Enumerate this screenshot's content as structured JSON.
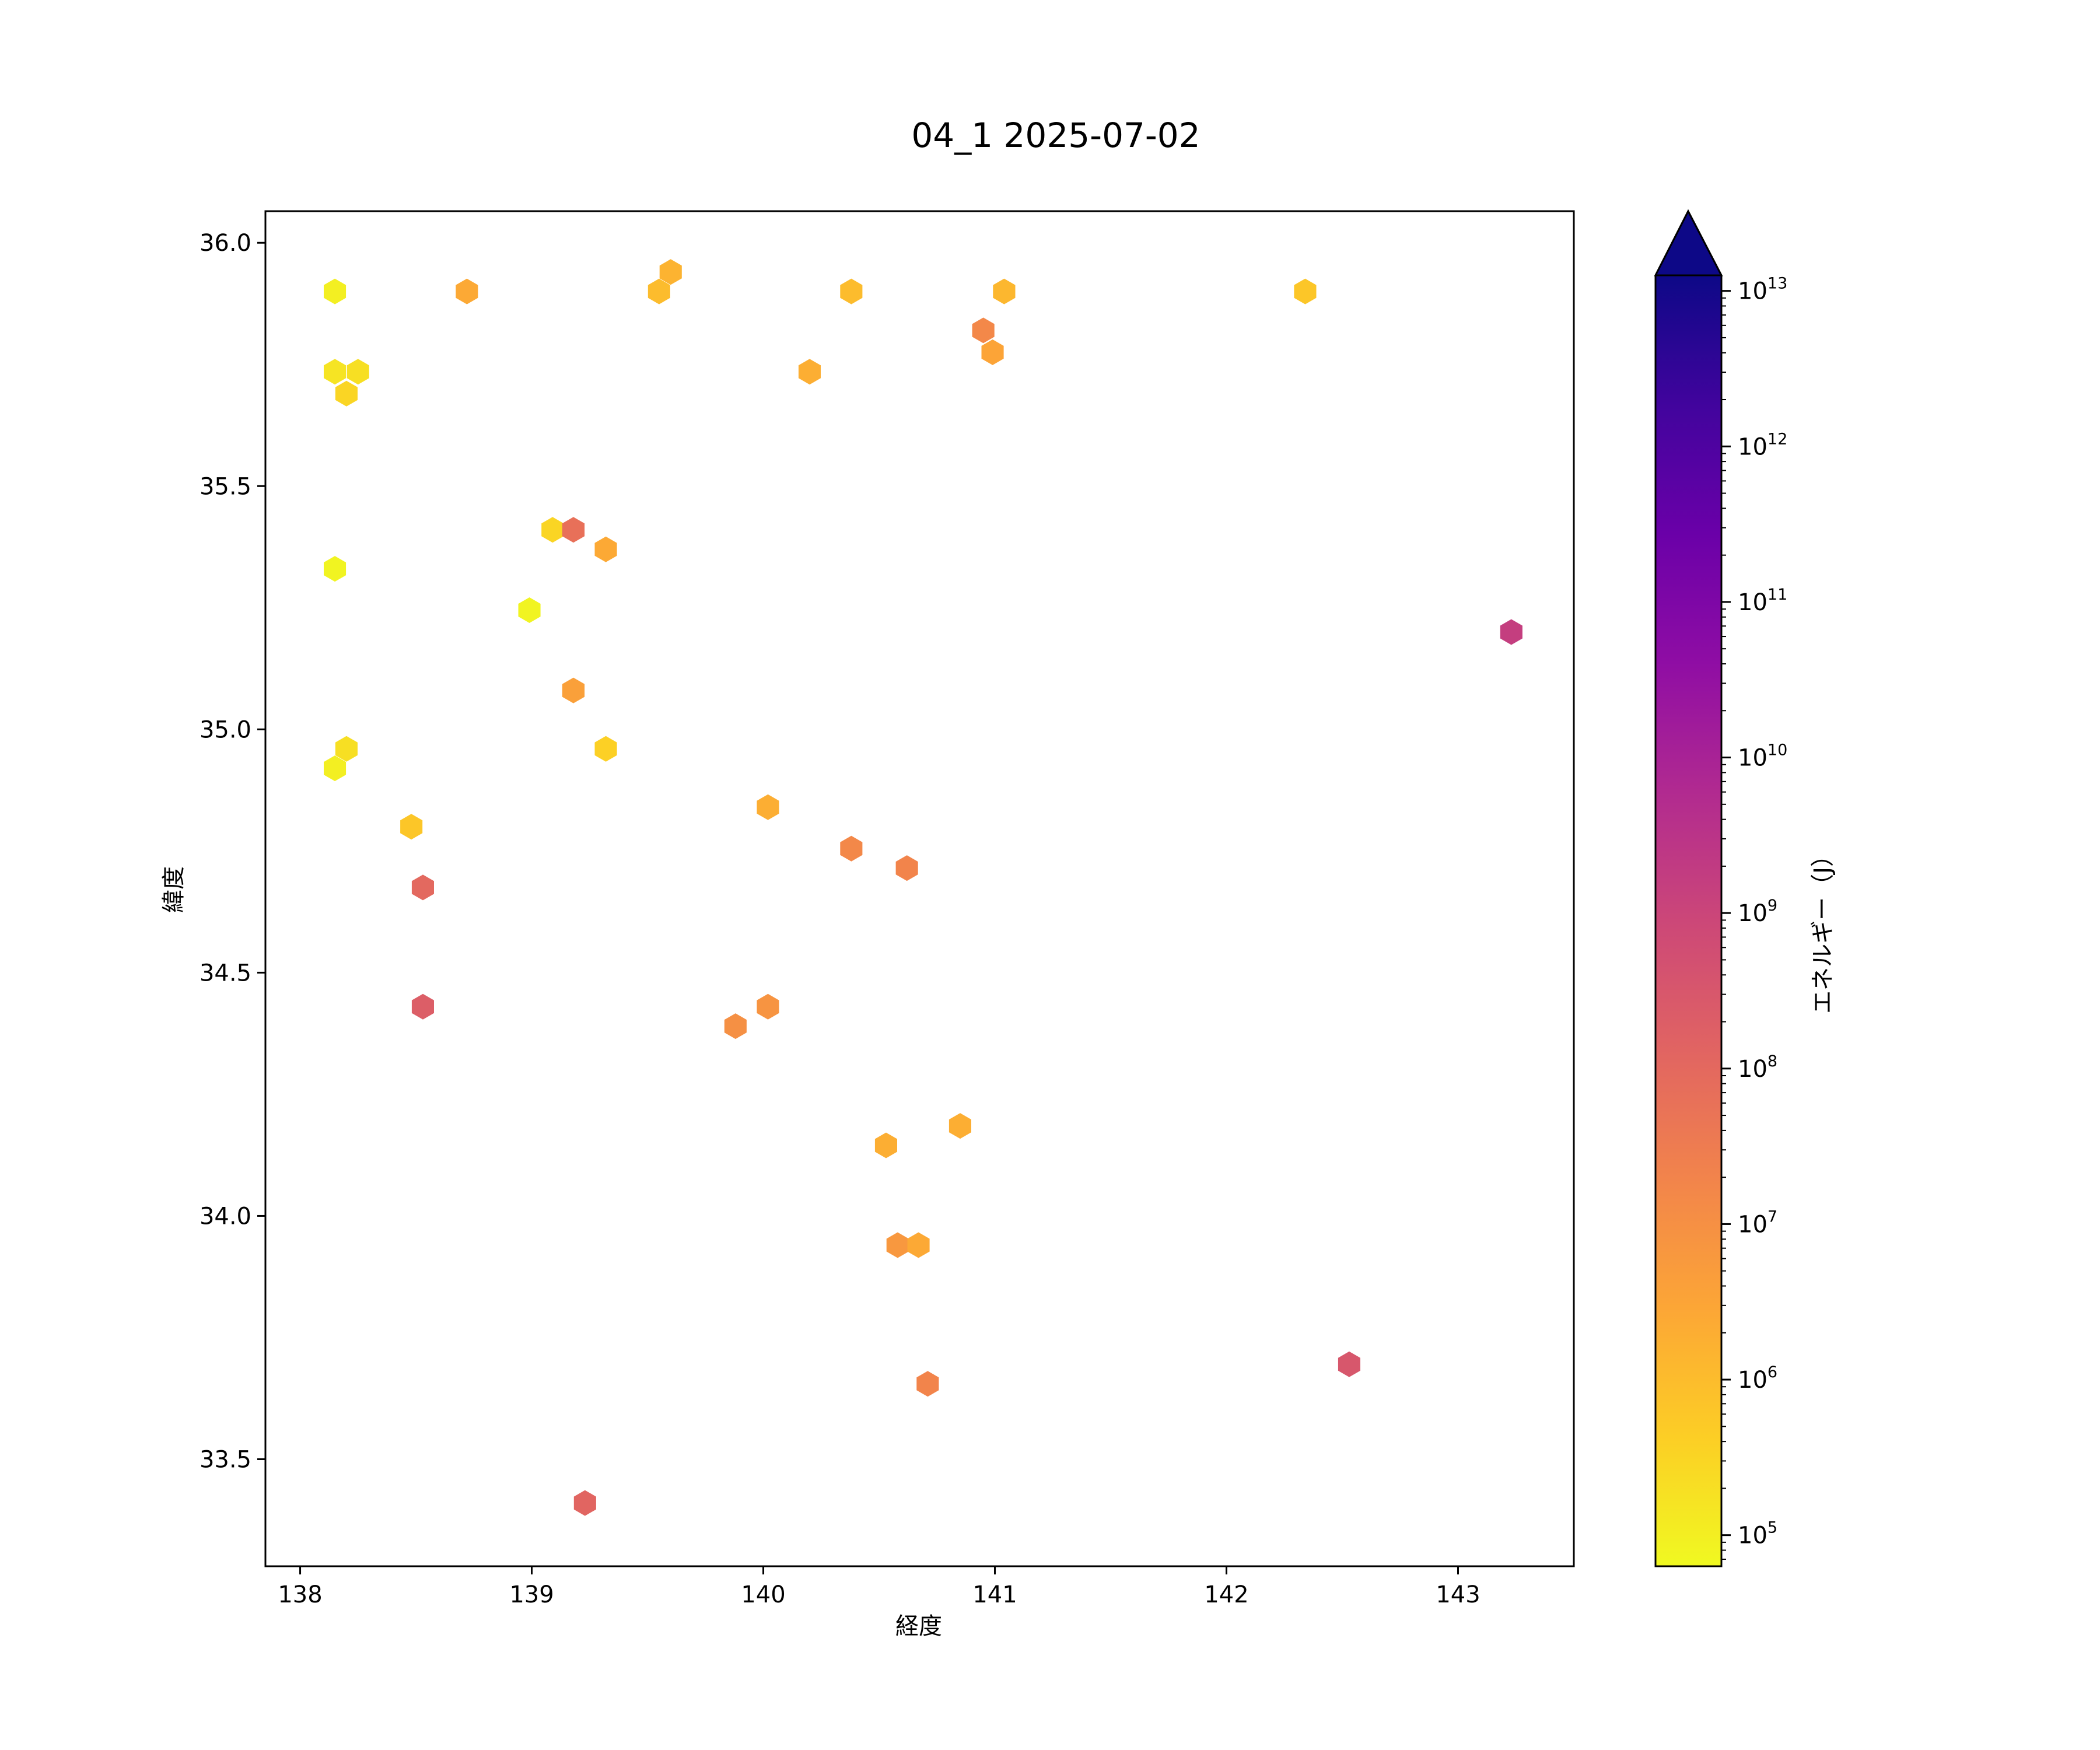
{
  "chart_data": {
    "type": "scatter",
    "marker": "hexagon",
    "title": "04_1 2025-07-02",
    "xlabel": "経度",
    "ylabel": "緯度",
    "xlim": [
      137.85,
      143.5
    ],
    "ylim": [
      33.28,
      36.065
    ],
    "xticks": [
      {
        "value": 138,
        "label": "138"
      },
      {
        "value": 139,
        "label": "139"
      },
      {
        "value": 140,
        "label": "140"
      },
      {
        "value": 141,
        "label": "141"
      },
      {
        "value": 142,
        "label": "142"
      },
      {
        "value": 143,
        "label": "143"
      }
    ],
    "yticks": [
      {
        "value": 33.5,
        "label": "33.5"
      },
      {
        "value": 34.0,
        "label": "34.0"
      },
      {
        "value": 34.5,
        "label": "34.5"
      },
      {
        "value": 35.0,
        "label": "35.0"
      },
      {
        "value": 35.5,
        "label": "35.5"
      },
      {
        "value": 36.0,
        "label": "36.0"
      }
    ],
    "colorbar": {
      "label": "エネルギー（J）",
      "scale": "log",
      "colormap": "plasma_r",
      "extend": "max",
      "min_exponent": 4.8,
      "max_exponent": 13.1,
      "ticks": [
        {
          "value": 5,
          "base": "10",
          "exp": "5"
        },
        {
          "value": 6,
          "base": "10",
          "exp": "6"
        },
        {
          "value": 7,
          "base": "10",
          "exp": "7"
        },
        {
          "value": 8,
          "base": "10",
          "exp": "8"
        },
        {
          "value": 9,
          "base": "10",
          "exp": "9"
        },
        {
          "value": 10,
          "base": "10",
          "exp": "10"
        },
        {
          "value": 11,
          "base": "10",
          "exp": "11"
        },
        {
          "value": 12,
          "base": "10",
          "exp": "12"
        },
        {
          "value": 13,
          "base": "10",
          "exp": "13"
        }
      ]
    },
    "points": [
      {
        "lon": 138.15,
        "lat": 35.9,
        "log_energy": 5.0
      },
      {
        "lon": 138.15,
        "lat": 35.735,
        "log_energy": 5.2
      },
      {
        "lon": 138.25,
        "lat": 35.735,
        "log_energy": 5.3
      },
      {
        "lon": 138.2,
        "lat": 35.69,
        "log_energy": 5.5
      },
      {
        "lon": 138.72,
        "lat": 35.9,
        "log_energy": 6.4
      },
      {
        "lon": 139.55,
        "lat": 35.9,
        "log_energy": 6.0
      },
      {
        "lon": 139.6,
        "lat": 35.94,
        "log_energy": 6.2
      },
      {
        "lon": 140.38,
        "lat": 35.9,
        "log_energy": 6.0
      },
      {
        "lon": 141.04,
        "lat": 35.9,
        "log_energy": 6.1
      },
      {
        "lon": 142.34,
        "lat": 35.9,
        "log_energy": 5.8
      },
      {
        "lon": 140.2,
        "lat": 35.735,
        "log_energy": 6.3
      },
      {
        "lon": 140.95,
        "lat": 35.82,
        "log_energy": 7.2
      },
      {
        "lon": 140.99,
        "lat": 35.775,
        "log_energy": 6.5
      },
      {
        "lon": 138.15,
        "lat": 35.33,
        "log_energy": 4.9
      },
      {
        "lon": 139.09,
        "lat": 35.41,
        "log_energy": 5.5
      },
      {
        "lon": 139.18,
        "lat": 35.41,
        "log_energy": 7.8
      },
      {
        "lon": 139.32,
        "lat": 35.37,
        "log_energy": 6.4
      },
      {
        "lon": 138.99,
        "lat": 35.245,
        "log_energy": 4.9
      },
      {
        "lon": 143.23,
        "lat": 35.2,
        "log_energy": 9.2
      },
      {
        "lon": 139.18,
        "lat": 35.08,
        "log_energy": 6.6
      },
      {
        "lon": 138.2,
        "lat": 34.96,
        "log_energy": 5.3
      },
      {
        "lon": 138.15,
        "lat": 34.92,
        "log_energy": 5.0
      },
      {
        "lon": 139.32,
        "lat": 34.96,
        "log_energy": 5.6
      },
      {
        "lon": 140.02,
        "lat": 34.84,
        "log_energy": 6.3
      },
      {
        "lon": 138.48,
        "lat": 34.8,
        "log_energy": 5.8
      },
      {
        "lon": 140.38,
        "lat": 34.755,
        "log_energy": 7.2
      },
      {
        "lon": 140.62,
        "lat": 34.715,
        "log_energy": 7.3
      },
      {
        "lon": 138.53,
        "lat": 34.675,
        "log_energy": 8.0
      },
      {
        "lon": 138.53,
        "lat": 34.43,
        "log_energy": 8.3
      },
      {
        "lon": 140.02,
        "lat": 34.43,
        "log_energy": 6.9
      },
      {
        "lon": 139.88,
        "lat": 34.39,
        "log_energy": 7.0
      },
      {
        "lon": 140.85,
        "lat": 34.185,
        "log_energy": 6.3
      },
      {
        "lon": 140.53,
        "lat": 34.145,
        "log_energy": 6.3
      },
      {
        "lon": 140.58,
        "lat": 33.94,
        "log_energy": 6.8
      },
      {
        "lon": 140.67,
        "lat": 33.94,
        "log_energy": 6.4
      },
      {
        "lon": 142.53,
        "lat": 33.695,
        "log_energy": 8.5
      },
      {
        "lon": 140.71,
        "lat": 33.655,
        "log_energy": 7.3
      },
      {
        "lon": 139.23,
        "lat": 33.41,
        "log_energy": 8.1
      }
    ]
  }
}
